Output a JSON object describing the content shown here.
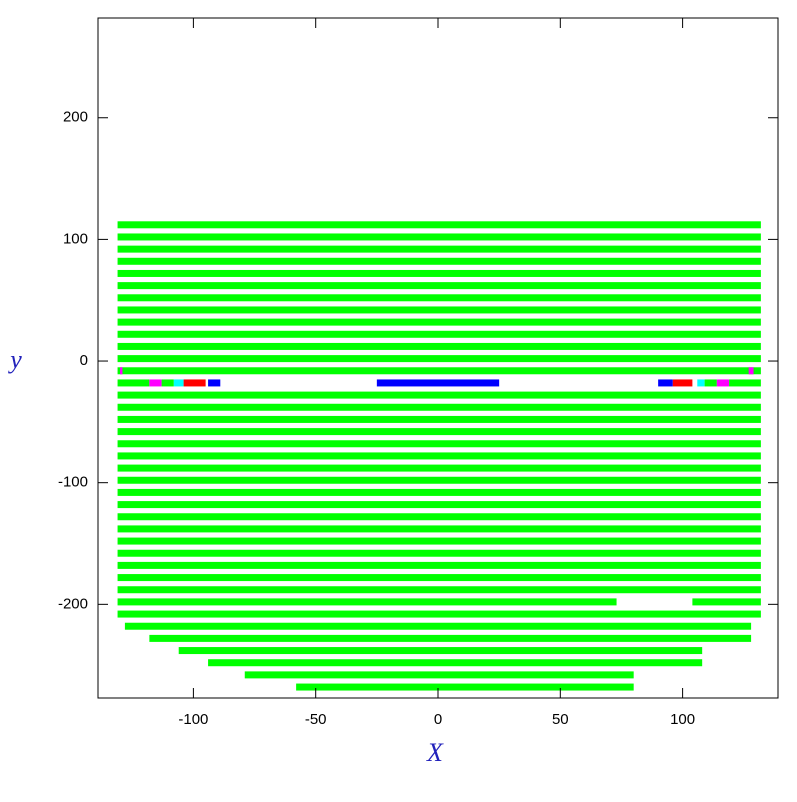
{
  "chart_data": {
    "type": "segments",
    "x_label": "X",
    "y_label": "y",
    "xlim": [
      -139,
      139
    ],
    "ylim": [
      -277,
      282
    ],
    "xticks": [
      -100,
      -50,
      0,
      50,
      100
    ],
    "yticks": [
      -200,
      -100,
      0,
      100,
      200
    ],
    "segments": [
      {
        "y": 112,
        "x0": -131,
        "x1": 132,
        "color": "#00ff00"
      },
      {
        "y": 102,
        "x0": -131,
        "x1": 132,
        "color": "#00ff00"
      },
      {
        "y": 92,
        "x0": -131,
        "x1": 132,
        "color": "#00ff00"
      },
      {
        "y": 82,
        "x0": -131,
        "x1": 132,
        "color": "#00ff00"
      },
      {
        "y": 72,
        "x0": -131,
        "x1": 132,
        "color": "#00ff00"
      },
      {
        "y": 62,
        "x0": -131,
        "x1": 132,
        "color": "#00ff00"
      },
      {
        "y": 52,
        "x0": -131,
        "x1": 132,
        "color": "#00ff00"
      },
      {
        "y": 42,
        "x0": -131,
        "x1": 132,
        "color": "#00ff00"
      },
      {
        "y": 32,
        "x0": -131,
        "x1": 132,
        "color": "#00ff00"
      },
      {
        "y": 22,
        "x0": -131,
        "x1": 132,
        "color": "#00ff00"
      },
      {
        "y": 12,
        "x0": -131,
        "x1": 132,
        "color": "#00ff00"
      },
      {
        "y": 2,
        "x0": -131,
        "x1": 132,
        "color": "#00ff00"
      },
      {
        "y": -8,
        "x0": -131,
        "x1": 132,
        "color": "#00ff00"
      },
      {
        "y": -8,
        "x0": -130,
        "x1": -129,
        "color": "#ff00ff"
      },
      {
        "y": -8,
        "x0": 127,
        "x1": 129,
        "color": "#ff00ff"
      },
      {
        "y": -18,
        "x0": -131,
        "x1": -118,
        "color": "#00ff00"
      },
      {
        "y": -18,
        "x0": -118,
        "x1": -113,
        "color": "#ff00ff"
      },
      {
        "y": -18,
        "x0": -113,
        "x1": -108,
        "color": "#00ff00"
      },
      {
        "y": -18,
        "x0": -108,
        "x1": -104,
        "color": "#00ffff"
      },
      {
        "y": -18,
        "x0": -104,
        "x1": -95,
        "color": "#ff0000"
      },
      {
        "y": -18,
        "x0": -94,
        "x1": -89,
        "color": "#0000ff"
      },
      {
        "y": -18,
        "x0": -25,
        "x1": 25,
        "color": "#0000ff"
      },
      {
        "y": -18,
        "x0": 90,
        "x1": 96,
        "color": "#0000ff"
      },
      {
        "y": -18,
        "x0": 96,
        "x1": 104,
        "color": "#ff0000"
      },
      {
        "y": -18,
        "x0": 106,
        "x1": 109,
        "color": "#00ffff"
      },
      {
        "y": -18,
        "x0": 109,
        "x1": 114,
        "color": "#00ff00"
      },
      {
        "y": -18,
        "x0": 114,
        "x1": 119,
        "color": "#ff00ff"
      },
      {
        "y": -18,
        "x0": 119,
        "x1": 132,
        "color": "#00ff00"
      },
      {
        "y": -28,
        "x0": -131,
        "x1": 132,
        "color": "#00ff00"
      },
      {
        "y": -38,
        "x0": -131,
        "x1": 132,
        "color": "#00ff00"
      },
      {
        "y": -48,
        "x0": -131,
        "x1": 132,
        "color": "#00ff00"
      },
      {
        "y": -58,
        "x0": -131,
        "x1": 132,
        "color": "#00ff00"
      },
      {
        "y": -68,
        "x0": -131,
        "x1": 132,
        "color": "#00ff00"
      },
      {
        "y": -78,
        "x0": -131,
        "x1": 132,
        "color": "#00ff00"
      },
      {
        "y": -88,
        "x0": -131,
        "x1": 132,
        "color": "#00ff00"
      },
      {
        "y": -98,
        "x0": -131,
        "x1": 132,
        "color": "#00ff00"
      },
      {
        "y": -108,
        "x0": -131,
        "x1": 132,
        "color": "#00ff00"
      },
      {
        "y": -118,
        "x0": -131,
        "x1": 132,
        "color": "#00ff00"
      },
      {
        "y": -128,
        "x0": -131,
        "x1": 132,
        "color": "#00ff00"
      },
      {
        "y": -138,
        "x0": -131,
        "x1": 132,
        "color": "#00ff00"
      },
      {
        "y": -148,
        "x0": -131,
        "x1": 132,
        "color": "#00ff00"
      },
      {
        "y": -158,
        "x0": -131,
        "x1": 132,
        "color": "#00ff00"
      },
      {
        "y": -168,
        "x0": -131,
        "x1": 132,
        "color": "#00ff00"
      },
      {
        "y": -178,
        "x0": -131,
        "x1": 132,
        "color": "#00ff00"
      },
      {
        "y": -188,
        "x0": -131,
        "x1": 132,
        "color": "#00ff00"
      },
      {
        "y": -198,
        "x0": -131,
        "x1": 73,
        "color": "#00ff00"
      },
      {
        "y": -198,
        "x0": 104,
        "x1": 132,
        "color": "#00ff00"
      },
      {
        "y": -208,
        "x0": -131,
        "x1": 132,
        "color": "#00ff00"
      },
      {
        "y": -218,
        "x0": -128,
        "x1": 128,
        "color": "#00ff00"
      },
      {
        "y": -228,
        "x0": -118,
        "x1": 128,
        "color": "#00ff00"
      },
      {
        "y": -238,
        "x0": -106,
        "x1": 108,
        "color": "#00ff00"
      },
      {
        "y": -248,
        "x0": -94,
        "x1": 108,
        "color": "#00ff00"
      },
      {
        "y": -258,
        "x0": -79,
        "x1": 80,
        "color": "#00ff00"
      },
      {
        "y": -268,
        "x0": -58,
        "x1": 80,
        "color": "#00ff00"
      }
    ]
  }
}
